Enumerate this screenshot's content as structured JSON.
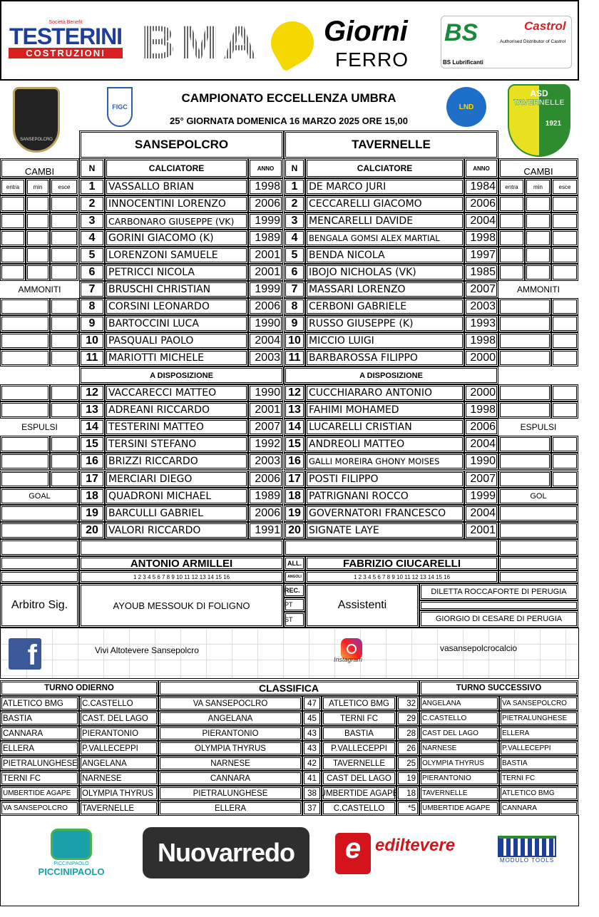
{
  "sponsors_top": {
    "testerini": {
      "small": "Società Benefit",
      "name": "TESTERINI",
      "sub": "COSTRUZIONI"
    },
    "bma": "BMA",
    "giorni": {
      "name": "Giorni",
      "sub": "FERRO"
    },
    "bs": {
      "name": "BS Lubrificanti",
      "castrol": "Castrol",
      "tag": "Authorised Distributor of Castrol"
    }
  },
  "header": {
    "title": "CAMPIONATO ECCELLENZA UMBRA",
    "subtitle": "25° GIORNATA DOMENICA 16 MARZO 2025 ORE 15,00",
    "home_logo_text": "SANSEPOLCRO",
    "figc": "FIGC",
    "lnd": "LND",
    "away_logo_text": {
      "top": "ASD",
      "name": "TAVERNELLE",
      "year": "1921"
    }
  },
  "home": {
    "team": "SANSEPOLCRO",
    "coach": "ANTONIO ARMILLEI",
    "numbers": "1 2 3 4 5 6 7 8 9 10 11 12 13 14 15 16"
  },
  "away": {
    "team": "TAVERNELLE",
    "coach": "FABRIZIO CIUCARELLI",
    "numbers": "1 2 3 4 5 6 7 8 9 10 11 12 13 14 15 16"
  },
  "labels": {
    "cambi": "CAMBI",
    "n": "N",
    "calciatore": "CALCIATORE",
    "anno": "ANNO",
    "entra": "entra",
    "min": "min",
    "esce": "esce",
    "ammoniti": "AMMONITI",
    "espulsi": "ESPULSI",
    "goal": "GOAL",
    "gol": "GOL",
    "a_disposizione": "A DISPOSIZIONE",
    "all": "ALL.",
    "angoli": "ANGOLI",
    "rec": "REC.",
    "pt": "PT",
    "st": "ST",
    "arbitro": "Arbitro Sig.",
    "assistenti": "Assistenti"
  },
  "players": [
    {
      "n": "1",
      "home": "VASSALLO BRIAN",
      "hy": "1998",
      "away": "DE MARCO JURI",
      "ay": "1984"
    },
    {
      "n": "2",
      "home": "INNOCENTINI LORENZO",
      "hy": "2006",
      "away": "CECCARELLI GIACOMO",
      "ay": "2006"
    },
    {
      "n": "3",
      "home": "CARBONARO GIUSEPPE (VK)",
      "hy": "1999",
      "away": "MENCARELLI DAVIDE",
      "ay": "2004"
    },
    {
      "n": "4",
      "home": "GORINI GIACOMO (K)",
      "hy": "1989",
      "away": "BENGALA GOMSI ALEX MARTIAL",
      "ay": "1998"
    },
    {
      "n": "5",
      "home": "LORENZONI SAMUELE",
      "hy": "2001",
      "away": "BENDA NICOLA",
      "ay": "1997"
    },
    {
      "n": "6",
      "home": "PETRICCI NICOLA",
      "hy": "2001",
      "away": "IBOJO NICHOLAS (VK)",
      "ay": "1985"
    },
    {
      "n": "7",
      "home": "BRUSCHI CHRISTIAN",
      "hy": "1999",
      "away": "MASSARI LORENZO",
      "ay": "2007"
    },
    {
      "n": "8",
      "home": "CORSINI LEONARDO",
      "hy": "2006",
      "away": "CERBONI GABRIELE",
      "ay": "2003"
    },
    {
      "n": "9",
      "home": "BARTOCCINI LUCA",
      "hy": "1990",
      "away": "RUSSO GIUSEPPE (K)",
      "ay": "1993"
    },
    {
      "n": "10",
      "home": "PASQUALI PAOLO",
      "hy": "2004",
      "away": "MICCIO LUIGI",
      "ay": "1998"
    },
    {
      "n": "11",
      "home": "MARIOTTI MICHELE",
      "hy": "2003",
      "away": "BARBAROSSA FILIPPO",
      "ay": "2000"
    },
    {
      "n": "12",
      "home": "VACCARECCI MATTEO",
      "hy": "1990",
      "away": "CUCCHIARARO ANTONIO",
      "ay": "2000"
    },
    {
      "n": "13",
      "home": "ADREANI RICCARDO",
      "hy": "2001",
      "away": "FAHIMI MOHAMED",
      "ay": "1998"
    },
    {
      "n": "14",
      "home": "TESTERINI MATTEO",
      "hy": "2007",
      "away": "LUCARELLI CRISTIAN",
      "ay": "2006"
    },
    {
      "n": "15",
      "home": "TERSINI STEFANO",
      "hy": "1992",
      "away": "ANDREOLI MATTEO",
      "ay": "2004"
    },
    {
      "n": "16",
      "home": "BRIZZI RICCARDO",
      "hy": "2003",
      "away": "GALLI MOREIRA GHONY MOISES",
      "ay": "1990"
    },
    {
      "n": "17",
      "home": "MERCIARI DIEGO",
      "hy": "2006",
      "away": "POSTI FILIPPO",
      "ay": "2007"
    },
    {
      "n": "18",
      "home": "QUADRONI MICHAEL",
      "hy": "1989",
      "away": "PATRIGNANI ROCCO",
      "ay": "1999"
    },
    {
      "n": "19",
      "home": "BARCULLI GABRIEL",
      "hy": "2006",
      "away": "GOVERNATORI FRANCESCO",
      "ay": "2004"
    },
    {
      "n": "20",
      "home": "VALORI RICCARDO",
      "hy": "1991",
      "away": "SIGNATE LAYE",
      "ay": "2001"
    }
  ],
  "officials": {
    "arbitro": "AYOUB MESSOUK DI FOLIGNO",
    "assistente1": "DILETTA ROCCAFORTE DI PERUGIA",
    "assistente2": "GIORGIO DI CESARE DI PERUGIA"
  },
  "social": {
    "facebook": "Vivi Altotevere Sansepolcro",
    "instagram_label": "Instagram",
    "instagram": "vasansepolcrocalcio"
  },
  "standings": {
    "turno_odierno_title": "TURNO ODIERNO",
    "classifica_title": "CLASSIFICA",
    "turno_successivo_title": "TURNO SUCCESSIVO",
    "turno_odierno": [
      [
        "ATLETICO BMG",
        "C.CASTELLO"
      ],
      [
        "BASTIA",
        "CAST. DEL LAGO"
      ],
      [
        "CANNARA",
        "PIERANTONIO"
      ],
      [
        "ELLERA",
        "P.VALLECEPPI"
      ],
      [
        "PIETRALUNGHESE",
        "ANGELANA"
      ],
      [
        "TERNI FC",
        "NARNESE"
      ],
      [
        "UMBERTIDE AGAPE",
        "OLYMPIA THYRUS"
      ],
      [
        "VA SANSEPOLCRO",
        "TAVERNELLE"
      ]
    ],
    "classifica": [
      [
        "VA SANSEPOCLRO",
        "47",
        "ATLETICO BMG",
        "32"
      ],
      [
        "ANGELANA",
        "45",
        "TERNI FC",
        "29"
      ],
      [
        "PIERANTONIO",
        "43",
        "BASTIA",
        "28"
      ],
      [
        "OLYMPIA THYRUS",
        "43",
        "P.VALLECEPPI",
        "26"
      ],
      [
        "NARNESE",
        "42",
        "TAVERNELLE",
        "25"
      ],
      [
        "CANNARA",
        "41",
        "CAST DEL LAGO",
        "19"
      ],
      [
        "PIETRALUNGHESE",
        "38",
        "UMBERTIDE AGAPE",
        "18"
      ],
      [
        "ELLERA",
        "37",
        "C.CASTELLO",
        "*5"
      ]
    ],
    "turno_successivo": [
      [
        "ANGELANA",
        "VA SANSEPOLCRO"
      ],
      [
        "C.CASTELLO",
        "PIETRALUNGHESE"
      ],
      [
        "CAST DEL LAGO",
        "ELLERA"
      ],
      [
        "NARNESE",
        "P.VALLECEPPI"
      ],
      [
        "OLYMPIA THYRUS",
        "BASTIA"
      ],
      [
        "PIERANTONIO",
        "TERNI FC"
      ],
      [
        "TAVERNELLE",
        "ATLETICO BMG"
      ],
      [
        "UMBERTIDE AGAPE",
        "CANNARA"
      ]
    ]
  },
  "sponsors_bottom": {
    "piccini": "PICCINIPAOLO",
    "nuovarredo": "Nuovarredo",
    "ediltevere": "ediltevere",
    "modulo": "MODULO TOOLS"
  },
  "colors": {
    "testerini_blue": "#1d3f9a",
    "testerini_red": "#d8201f",
    "giorni_yellow": "#f5d800",
    "castrol_green": "#008a3e",
    "tavernelle_green": "#2e8b2e",
    "tavernelle_yellow": "#e8e020",
    "facebook": "#3b5998",
    "ediltevere_red": "#d4141c",
    "piccini_teal": "#1aa0a8"
  }
}
